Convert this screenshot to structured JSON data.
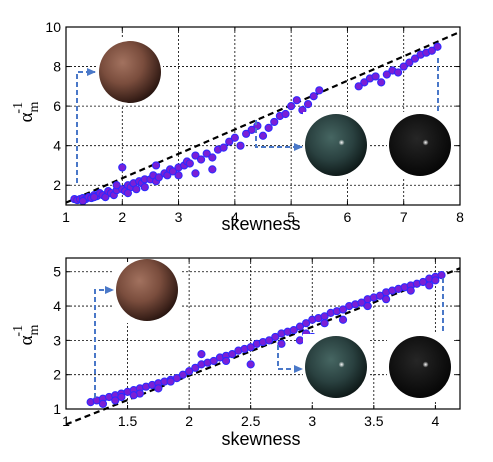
{
  "chart_data": [
    {
      "type": "scatter",
      "xlabel": "skewness",
      "ylabel": "α",
      "ylabel_superscript": "-1",
      "ylabel_subscript": "m",
      "xlim": [
        1,
        8
      ],
      "ylim": [
        1,
        10
      ],
      "xticks": [
        "1",
        "2",
        "3",
        "4",
        "5",
        "6",
        "7",
        "8"
      ],
      "yticks": [
        "2",
        "4",
        "6",
        "8",
        "10"
      ],
      "xtick_values": [
        1,
        2,
        3,
        4,
        5,
        6,
        7,
        8
      ],
      "ytick_values": [
        2,
        4,
        6,
        8,
        10
      ],
      "grid": true,
      "marker_color": "#7a1fd6",
      "marker_edge": "#2a2aff",
      "fit_line": {
        "x": [
          1,
          8
        ],
        "y": [
          1.12,
          9.75
        ],
        "color": "#000000",
        "style": "dashed"
      },
      "arrow_color": "#4a78c8",
      "spheres": [
        "matte-brown-sphere",
        "glossy-dark-teal-sphere",
        "glossy-black-sphere"
      ],
      "points": [
        [
          1.15,
          1.3
        ],
        [
          1.2,
          1.25
        ],
        [
          1.25,
          1.3
        ],
        [
          1.3,
          1.35
        ],
        [
          1.35,
          1.3
        ],
        [
          1.4,
          1.4
        ],
        [
          1.45,
          1.35
        ],
        [
          1.5,
          1.5
        ],
        [
          1.55,
          1.45
        ],
        [
          1.6,
          1.6
        ],
        [
          1.65,
          1.5
        ],
        [
          1.7,
          1.4
        ],
        [
          1.75,
          1.7
        ],
        [
          1.8,
          1.6
        ],
        [
          1.85,
          1.5
        ],
        [
          1.9,
          1.75
        ],
        [
          2.0,
          1.8
        ],
        [
          2.05,
          1.7
        ],
        [
          2.1,
          2.0
        ],
        [
          2.15,
          1.9
        ],
        [
          2.2,
          2.1
        ],
        [
          2.25,
          1.8
        ],
        [
          2.3,
          2.2
        ],
        [
          2.35,
          2.1
        ],
        [
          2.4,
          2.3
        ],
        [
          2.5,
          2.3
        ],
        [
          2.55,
          2.5
        ],
        [
          2.6,
          2.2
        ],
        [
          2.65,
          2.4
        ],
        [
          2.75,
          2.6
        ],
        [
          2.8,
          2.5
        ],
        [
          2.85,
          2.8
        ],
        [
          2.9,
          2.7
        ],
        [
          3.0,
          2.9
        ],
        [
          3.1,
          3.0
        ],
        [
          3.15,
          3.2
        ],
        [
          3.2,
          3.1
        ],
        [
          3.3,
          3.5
        ],
        [
          3.4,
          3.3
        ],
        [
          3.5,
          3.6
        ],
        [
          3.6,
          3.4
        ],
        [
          3.7,
          3.8
        ],
        [
          3.8,
          3.9
        ],
        [
          3.9,
          4.2
        ],
        [
          4.0,
          4.4
        ],
        [
          4.1,
          4.0
        ],
        [
          4.2,
          4.6
        ],
        [
          4.3,
          4.8
        ],
        [
          4.4,
          5.0
        ],
        [
          4.5,
          4.5
        ],
        [
          4.6,
          4.9
        ],
        [
          4.7,
          5.2
        ],
        [
          4.8,
          5.5
        ],
        [
          4.9,
          5.6
        ],
        [
          5.0,
          6.0
        ],
        [
          5.1,
          6.3
        ],
        [
          5.2,
          5.8
        ],
        [
          5.3,
          6.1
        ],
        [
          5.4,
          6.5
        ],
        [
          5.5,
          6.8
        ],
        [
          6.3,
          7.2
        ],
        [
          6.4,
          7.4
        ],
        [
          6.5,
          7.5
        ],
        [
          6.6,
          7.2
        ],
        [
          6.7,
          7.6
        ],
        [
          6.8,
          7.8
        ],
        [
          6.9,
          7.7
        ],
        [
          7.0,
          8.0
        ],
        [
          7.1,
          8.2
        ],
        [
          7.2,
          8.4
        ],
        [
          7.3,
          8.6
        ],
        [
          7.4,
          8.7
        ],
        [
          7.5,
          8.8
        ],
        [
          7.6,
          9.0
        ],
        [
          6.2,
          7.0
        ],
        [
          2.0,
          2.9
        ],
        [
          2.6,
          3.0
        ],
        [
          3.0,
          2.5
        ],
        [
          3.3,
          2.6
        ],
        [
          3.6,
          2.8
        ],
        [
          1.9,
          2.0
        ],
        [
          2.1,
          1.6
        ],
        [
          2.4,
          1.9
        ],
        [
          1.5,
          1.4
        ],
        [
          1.3,
          1.2
        ]
      ]
    },
    {
      "type": "scatter",
      "xlabel": "skewness",
      "ylabel": "α",
      "ylabel_superscript": "-1",
      "ylabel_subscript": "m",
      "xlim": [
        1,
        4.2
      ],
      "ylim": [
        1,
        5.4
      ],
      "xticks": [
        "1",
        "1.5",
        "2",
        "2.5",
        "3",
        "3.5",
        "4"
      ],
      "yticks": [
        "1",
        "2",
        "3",
        "4",
        "5"
      ],
      "xtick_values": [
        1,
        1.5,
        2,
        2.5,
        3,
        3.5,
        4
      ],
      "ytick_values": [
        1,
        2,
        3,
        4,
        5
      ],
      "grid": true,
      "marker_color": "#7a1fd6",
      "marker_edge": "#2a2aff",
      "fit_line": {
        "x": [
          1,
          4.2
        ],
        "y": [
          0.55,
          5.1
        ],
        "color": "#000000",
        "style": "dashed"
      },
      "arrow_color": "#4a78c8",
      "spheres": [
        "matte-brown-sphere",
        "glossy-dark-teal-sphere",
        "glossy-black-sphere"
      ],
      "points": [
        [
          1.2,
          1.2
        ],
        [
          1.25,
          1.25
        ],
        [
          1.3,
          1.3
        ],
        [
          1.35,
          1.35
        ],
        [
          1.4,
          1.4
        ],
        [
          1.45,
          1.45
        ],
        [
          1.5,
          1.5
        ],
        [
          1.55,
          1.55
        ],
        [
          1.6,
          1.6
        ],
        [
          1.65,
          1.65
        ],
        [
          1.7,
          1.7
        ],
        [
          1.75,
          1.75
        ],
        [
          1.8,
          1.8
        ],
        [
          1.85,
          1.85
        ],
        [
          1.9,
          1.9
        ],
        [
          1.95,
          2.0
        ],
        [
          2.0,
          2.1
        ],
        [
          2.05,
          2.2
        ],
        [
          2.1,
          2.3
        ],
        [
          2.15,
          2.35
        ],
        [
          2.2,
          2.4
        ],
        [
          2.25,
          2.5
        ],
        [
          2.3,
          2.55
        ],
        [
          2.35,
          2.6
        ],
        [
          2.4,
          2.7
        ],
        [
          2.45,
          2.75
        ],
        [
          2.5,
          2.8
        ],
        [
          2.55,
          2.9
        ],
        [
          2.6,
          2.95
        ],
        [
          2.65,
          3.0
        ],
        [
          2.7,
          3.1
        ],
        [
          2.75,
          3.2
        ],
        [
          2.8,
          3.25
        ],
        [
          2.85,
          3.3
        ],
        [
          2.9,
          3.4
        ],
        [
          2.95,
          3.5
        ],
        [
          3.0,
          3.6
        ],
        [
          3.05,
          3.65
        ],
        [
          3.1,
          3.7
        ],
        [
          3.15,
          3.8
        ],
        [
          3.2,
          3.85
        ],
        [
          3.25,
          3.9
        ],
        [
          3.3,
          4.0
        ],
        [
          3.35,
          4.05
        ],
        [
          3.4,
          4.1
        ],
        [
          3.45,
          4.2
        ],
        [
          3.5,
          4.25
        ],
        [
          3.55,
          4.3
        ],
        [
          3.6,
          4.4
        ],
        [
          3.65,
          4.45
        ],
        [
          3.7,
          4.5
        ],
        [
          3.75,
          4.55
        ],
        [
          3.8,
          4.6
        ],
        [
          3.85,
          4.65
        ],
        [
          3.9,
          4.7
        ],
        [
          3.95,
          4.8
        ],
        [
          4.0,
          4.85
        ],
        [
          4.05,
          4.9
        ],
        [
          2.1,
          2.6
        ],
        [
          2.3,
          2.4
        ],
        [
          2.5,
          2.3
        ],
        [
          2.75,
          2.9
        ],
        [
          2.95,
          3.2
        ],
        [
          3.1,
          3.5
        ],
        [
          3.25,
          3.6
        ],
        [
          3.45,
          4.0
        ],
        [
          1.3,
          1.15
        ],
        [
          1.45,
          1.35
        ],
        [
          1.6,
          1.45
        ],
        [
          1.75,
          1.6
        ],
        [
          1.85,
          1.8
        ],
        [
          1.55,
          1.4
        ],
        [
          1.4,
          1.25
        ],
        [
          3.6,
          4.2
        ],
        [
          3.8,
          4.45
        ],
        [
          3.95,
          4.6
        ],
        [
          4.0,
          4.75
        ],
        [
          2.9,
          3.0
        ],
        [
          3.0,
          3.1
        ]
      ]
    }
  ]
}
